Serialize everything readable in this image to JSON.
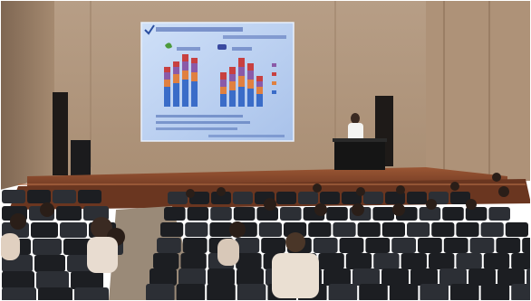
{
  "scene": {
    "subject": "lecture-hall",
    "colors": {
      "wall": "#b59a80",
      "wall_shadow": "#8d7560",
      "stage_floor": "#8a4a2a",
      "stage_front": "#5e2e1a",
      "screen_bg": "#bcd2f0",
      "screen_border": "#e6eefc",
      "bar_blue": "#3a6cc8",
      "bar_orange": "#e08040",
      "bar_purple": "#8a5aa8",
      "bar_red": "#c84040",
      "seat": "#1c1e22",
      "seat_highlight": "#2c2f35",
      "podium": "#1a1a1a",
      "speaker_shirt": "#f2f2f2"
    }
  }
}
